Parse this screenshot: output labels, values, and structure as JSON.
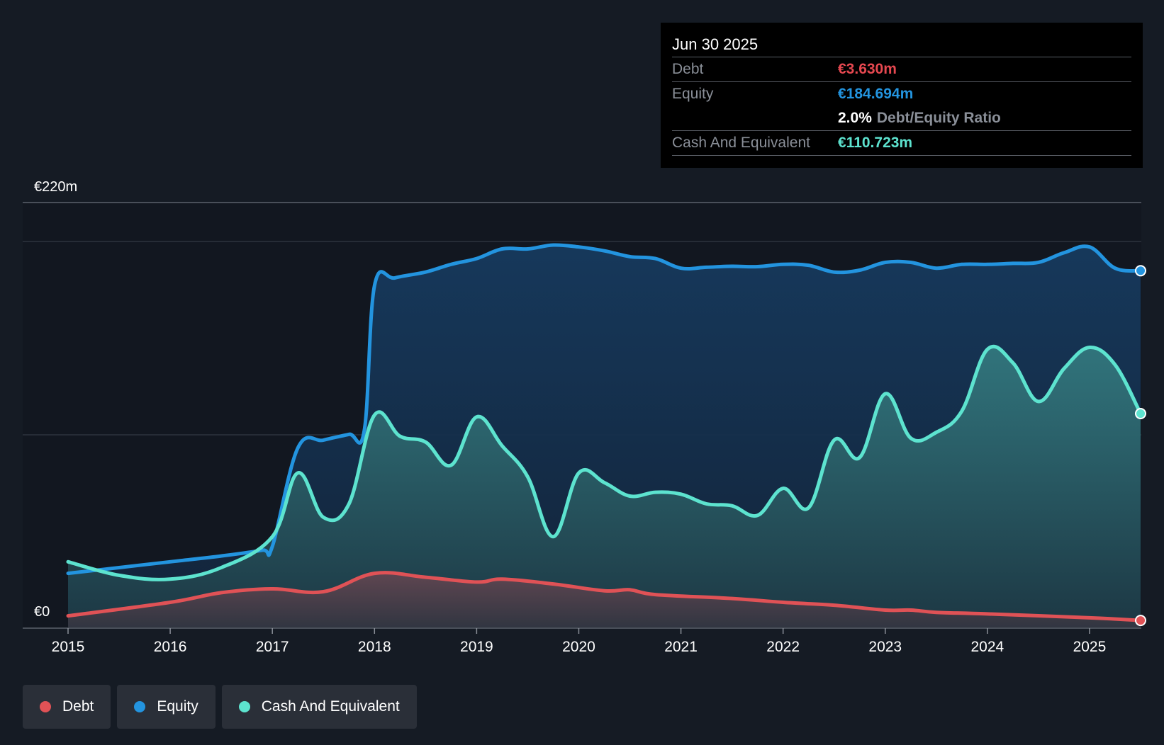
{
  "chart_data": {
    "type": "area",
    "currency_prefix": "€",
    "y_unit": "m",
    "y_top_label": "€220m",
    "y_bottom_label": "€0",
    "ylim": [
      0,
      220
    ],
    "x_ticks": [
      "2015",
      "2016",
      "2017",
      "2018",
      "2019",
      "2020",
      "2021",
      "2022",
      "2023",
      "2024",
      "2025"
    ],
    "xlim": [
      2015.0,
      2025.5
    ],
    "grid": true,
    "legend_position": "bottom-left",
    "series": [
      {
        "name": "Debt",
        "color": "#e05256",
        "points": [
          [
            2015.0,
            6
          ],
          [
            2016.0,
            13
          ],
          [
            2016.5,
            18
          ],
          [
            2017.0,
            20
          ],
          [
            2017.5,
            18.5
          ],
          [
            2018.0,
            28
          ],
          [
            2018.5,
            26
          ],
          [
            2019.0,
            23.5
          ],
          [
            2019.25,
            25
          ],
          [
            2019.75,
            22.5
          ],
          [
            2020.25,
            19
          ],
          [
            2020.5,
            19.5
          ],
          [
            2020.75,
            17
          ],
          [
            2021.5,
            15
          ],
          [
            2022.0,
            13
          ],
          [
            2022.5,
            11.5
          ],
          [
            2023.0,
            9
          ],
          [
            2023.25,
            9
          ],
          [
            2023.5,
            7.8
          ],
          [
            2024.0,
            7
          ],
          [
            2025.0,
            5
          ],
          [
            2025.5,
            3.63
          ]
        ]
      },
      {
        "name": "Equity",
        "color": "#2394df",
        "points": [
          [
            2015.0,
            28
          ],
          [
            2015.5,
            31
          ],
          [
            2016.0,
            34
          ],
          [
            2016.5,
            37
          ],
          [
            2016.9,
            40
          ],
          [
            2017.0,
            42
          ],
          [
            2017.25,
            93
          ],
          [
            2017.5,
            97
          ],
          [
            2017.75,
            100
          ],
          [
            2017.9,
            102
          ],
          [
            2018.0,
            177
          ],
          [
            2018.2,
            181
          ],
          [
            2018.5,
            184
          ],
          [
            2018.75,
            188
          ],
          [
            2019.0,
            191
          ],
          [
            2019.25,
            196
          ],
          [
            2019.5,
            196
          ],
          [
            2019.75,
            198
          ],
          [
            2020.0,
            197
          ],
          [
            2020.25,
            195
          ],
          [
            2020.5,
            192
          ],
          [
            2020.75,
            191
          ],
          [
            2021.0,
            186
          ],
          [
            2021.25,
            186.5
          ],
          [
            2021.5,
            187
          ],
          [
            2021.75,
            186.8
          ],
          [
            2022.0,
            188
          ],
          [
            2022.25,
            187.5
          ],
          [
            2022.5,
            184
          ],
          [
            2022.75,
            185
          ],
          [
            2023.0,
            189
          ],
          [
            2023.25,
            189
          ],
          [
            2023.5,
            186
          ],
          [
            2023.75,
            188
          ],
          [
            2024.0,
            188
          ],
          [
            2024.25,
            188.5
          ],
          [
            2024.5,
            189
          ],
          [
            2024.75,
            194
          ],
          [
            2025.0,
            197
          ],
          [
            2025.25,
            186
          ],
          [
            2025.5,
            184.694
          ]
        ]
      },
      {
        "name": "Cash And Equivalent",
        "color": "#5de3cf",
        "points": [
          [
            2015.0,
            34
          ],
          [
            2015.5,
            27
          ],
          [
            2016.0,
            25
          ],
          [
            2016.5,
            31
          ],
          [
            2017.0,
            47
          ],
          [
            2017.25,
            80
          ],
          [
            2017.5,
            57
          ],
          [
            2017.75,
            64
          ],
          [
            2018.0,
            110
          ],
          [
            2018.25,
            99
          ],
          [
            2018.5,
            96
          ],
          [
            2018.75,
            84
          ],
          [
            2019.0,
            109
          ],
          [
            2019.25,
            94
          ],
          [
            2019.5,
            78
          ],
          [
            2019.75,
            47
          ],
          [
            2020.0,
            80
          ],
          [
            2020.25,
            75
          ],
          [
            2020.5,
            68
          ],
          [
            2020.75,
            70
          ],
          [
            2021.0,
            69
          ],
          [
            2021.25,
            64
          ],
          [
            2021.5,
            63
          ],
          [
            2021.75,
            58
          ],
          [
            2022.0,
            72
          ],
          [
            2022.25,
            62
          ],
          [
            2022.5,
            97
          ],
          [
            2022.75,
            88
          ],
          [
            2023.0,
            121
          ],
          [
            2023.25,
            98
          ],
          [
            2023.5,
            101
          ],
          [
            2023.75,
            112
          ],
          [
            2024.0,
            144
          ],
          [
            2024.25,
            137
          ],
          [
            2024.5,
            117
          ],
          [
            2024.75,
            134
          ],
          [
            2025.0,
            145
          ],
          [
            2025.25,
            136
          ],
          [
            2025.5,
            110.723
          ]
        ]
      }
    ],
    "tooltip": {
      "date": "Jun 30 2025",
      "rows": [
        {
          "label": "Debt",
          "value": "€3.630m",
          "color": "#e64850"
        },
        {
          "label": "Equity",
          "value": "€184.694m",
          "color": "#2394df"
        },
        {
          "label": "",
          "value": "2.0%",
          "suffix": "Debt/Equity Ratio"
        },
        {
          "label": "Cash And Equivalent",
          "value": "€110.723m",
          "color": "#5de3cf"
        }
      ]
    }
  },
  "legend": {
    "items": [
      {
        "label": "Debt",
        "color": "#e05256"
      },
      {
        "label": "Equity",
        "color": "#2394df"
      },
      {
        "label": "Cash And Equivalent",
        "color": "#5de3cf"
      }
    ]
  }
}
